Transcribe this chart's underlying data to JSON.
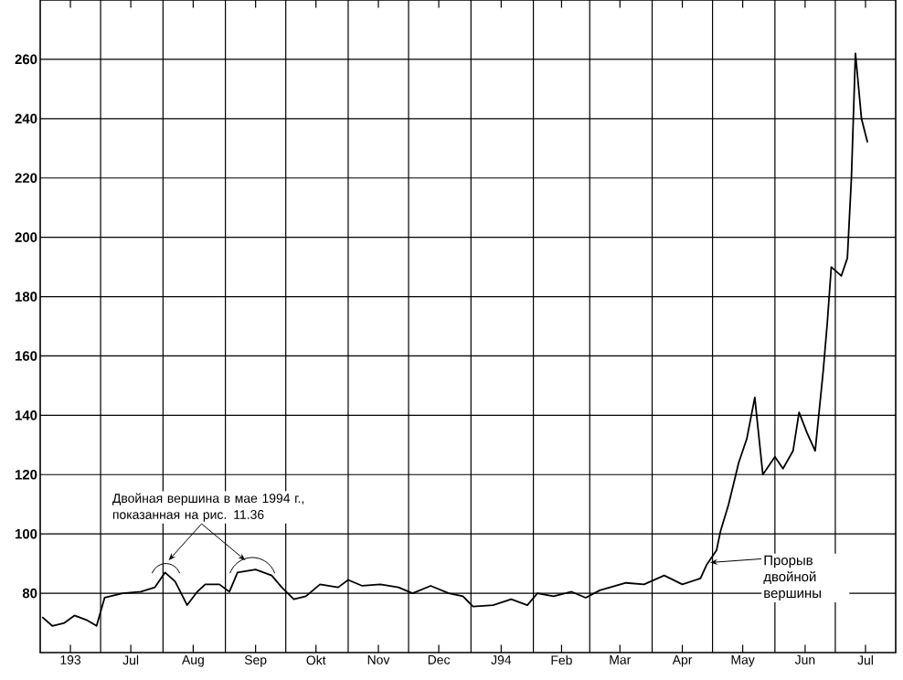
{
  "chart_data": {
    "type": "line",
    "x": [
      "1993-06-02",
      "1993-06-07",
      "1993-06-13",
      "1993-06-18",
      "1993-06-24",
      "1993-06-29",
      "1993-07-03",
      "1993-07-12",
      "1993-07-21",
      "1993-07-28",
      "1993-08-02",
      "1993-08-07",
      "1993-08-13",
      "1993-08-18",
      "1993-08-22",
      "1993-08-29",
      "1993-09-03",
      "1993-09-07",
      "1993-09-16",
      "1993-09-24",
      "1993-09-29",
      "1993-10-05",
      "1993-10-11",
      "1993-10-18",
      "1993-10-27",
      "1993-11-01",
      "1993-11-08",
      "1993-11-17",
      "1993-11-26",
      "1993-12-03",
      "1993-12-12",
      "1993-12-21",
      "1993-12-28",
      "1994-01-02",
      "1994-01-12",
      "1994-01-21",
      "1994-01-29",
      "1994-02-03",
      "1994-02-11",
      "1994-02-20",
      "1994-02-27",
      "1994-03-06",
      "1994-03-19",
      "1994-03-28",
      "1994-04-07",
      "1994-04-16",
      "1994-04-25",
      "1994-04-28",
      "1994-05-03",
      "1994-05-05",
      "1994-05-09",
      "1994-05-14",
      "1994-05-18",
      "1994-05-22",
      "1994-05-26",
      "1994-06-01",
      "1994-06-05",
      "1994-06-10",
      "1994-06-13",
      "1994-06-17",
      "1994-06-21",
      "1994-06-25",
      "1994-06-27",
      "1994-06-29",
      "1994-07-04",
      "1994-07-07",
      "1994-07-09",
      "1994-07-11",
      "1994-07-14",
      "1994-07-17"
    ],
    "series": [
      {
        "color": "#000000",
        "values": [
          72,
          69,
          70,
          72.5,
          71,
          69,
          78.5,
          80,
          80.5,
          82,
          87,
          84,
          76,
          80.5,
          83,
          83,
          80.5,
          87,
          88,
          86,
          82,
          78,
          79,
          83,
          82,
          84.5,
          82.5,
          83,
          82,
          80,
          82.5,
          80,
          79,
          75.5,
          76,
          78,
          76,
          80,
          79,
          80.5,
          78.5,
          81,
          83.5,
          83,
          86,
          83,
          85,
          89.5,
          94.5,
          101,
          110,
          124,
          132,
          146,
          120,
          126,
          122,
          128,
          141,
          134,
          128,
          155,
          171,
          190,
          187,
          193,
          220,
          262,
          240,
          232
        ]
      }
    ],
    "xlim": [
      "1993-06-01",
      "1994-07-31"
    ],
    "xticks": [
      {
        "value": "1993-06-16",
        "label": "193"
      },
      {
        "value": "1993-07-01",
        "label": null
      },
      {
        "value": "1993-07-16",
        "label": "Jul"
      },
      {
        "value": "1993-08-01",
        "label": null
      },
      {
        "value": "1993-08-16",
        "label": "Aug"
      },
      {
        "value": "1993-09-01",
        "label": null
      },
      {
        "value": "1993-09-16",
        "label": "Sep"
      },
      {
        "value": "1993-10-01",
        "label": null
      },
      {
        "value": "1993-10-16",
        "label": "Okt"
      },
      {
        "value": "1993-11-01",
        "label": null
      },
      {
        "value": "1993-11-16",
        "label": "Nov"
      },
      {
        "value": "1993-12-01",
        "label": null
      },
      {
        "value": "1993-12-16",
        "label": "Dec"
      },
      {
        "value": "1994-01-01",
        "label": null
      },
      {
        "value": "1994-01-16",
        "label": "J94"
      },
      {
        "value": "1994-02-01",
        "label": null
      },
      {
        "value": "1994-02-15",
        "label": "Feb"
      },
      {
        "value": "1994-03-01",
        "label": null
      },
      {
        "value": "1994-03-16",
        "label": "Mar"
      },
      {
        "value": "1994-04-01",
        "label": null
      },
      {
        "value": "1994-04-16",
        "label": "Apr"
      },
      {
        "value": "1994-05-01",
        "label": null
      },
      {
        "value": "1994-05-16",
        "label": "May"
      },
      {
        "value": "1994-06-01",
        "label": null
      },
      {
        "value": "1994-06-16",
        "label": "Jun"
      },
      {
        "value": "1994-07-01",
        "label": null
      },
      {
        "value": "1994-07-16",
        "label": "Jul"
      }
    ],
    "ylim": [
      60,
      280
    ],
    "yticks": [
      80,
      100,
      120,
      140,
      160,
      180,
      200,
      220,
      240,
      260
    ],
    "grid": true,
    "annotations": [
      {
        "text": "Двойная вершина в мае 1994 г., показанная на рис. 11.36",
        "x": "1993-08-02",
        "y": 88
      },
      "Прорыв двойной вершины"
    ]
  }
}
